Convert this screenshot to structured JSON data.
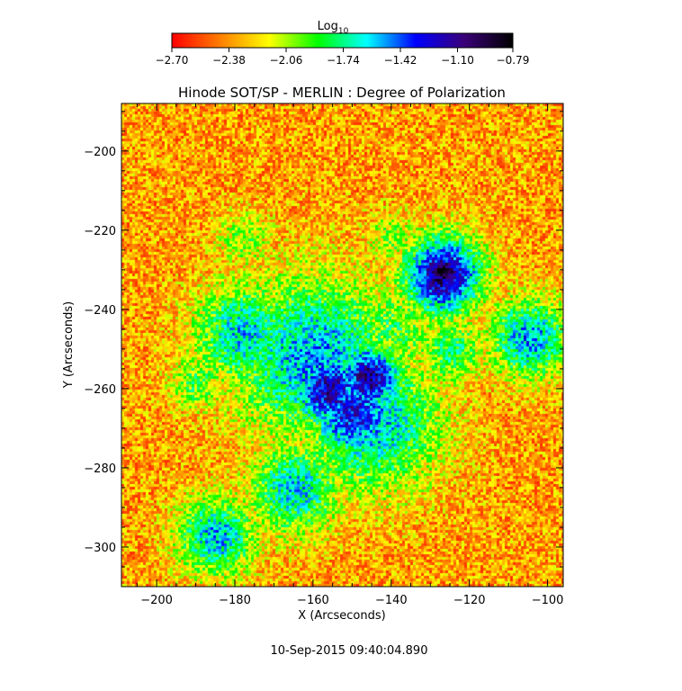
{
  "chart_data": {
    "type": "heatmap",
    "title": "Hinode SOT/SP - MERLIN : Degree of Polarization",
    "xlabel": "X (Arcseconds)",
    "ylabel": "Y (Arcseconds)",
    "xlim": [
      -209,
      -96
    ],
    "ylim": [
      -310,
      -188
    ],
    "x_ticks": [
      -200,
      -180,
      -160,
      -140,
      -120,
      -100
    ],
    "x_tick_labels": [
      "−200",
      "−180",
      "−160",
      "−140",
      "−120",
      "−100"
    ],
    "y_ticks": [
      -200,
      -220,
      -240,
      -260,
      -280,
      -300
    ],
    "y_tick_labels": [
      "−200",
      "−220",
      "−240",
      "−260",
      "−280",
      "−300"
    ],
    "colorbar": {
      "label_base": "Log",
      "label_sub": "10",
      "range": [
        -2.7,
        -0.79
      ],
      "ticks": [
        -2.7,
        -2.38,
        -2.06,
        -1.74,
        -1.42,
        -1.1,
        -0.79
      ],
      "tick_labels": [
        "−2.70",
        "−2.38",
        "−2.06",
        "−1.74",
        "−1.42",
        "−1.10",
        "−0.79"
      ],
      "colormap": [
        "#ff0000",
        "#ff7f00",
        "#ffff00",
        "#00ff00",
        "#00ffff",
        "#0000ff",
        "#3a0078",
        "#000000"
      ]
    },
    "features": [
      {
        "name": "dark polarization core",
        "x": -127,
        "y": -230,
        "radius": 3,
        "value": -0.79
      },
      {
        "name": "dark-blue core ring",
        "x": -127,
        "y": -231,
        "radius": 7,
        "value": -1.05
      },
      {
        "name": "central polarization patch",
        "x": -146,
        "y": -257,
        "radius": 6,
        "value": -1.1
      },
      {
        "name": "central polarization patch",
        "x": -156,
        "y": -260,
        "radius": 7,
        "value": -1.15
      },
      {
        "name": "central polarization patch",
        "x": -150,
        "y": -266,
        "radius": 8,
        "value": -1.25
      },
      {
        "name": "polarization network",
        "x": -160,
        "y": -252,
        "radius": 14,
        "value": -1.5
      },
      {
        "name": "polarization network",
        "x": -145,
        "y": -268,
        "radius": 12,
        "value": -1.55
      },
      {
        "name": "polarization network",
        "x": -178,
        "y": -246,
        "radius": 9,
        "value": -1.6
      },
      {
        "name": "polarization network",
        "x": -165,
        "y": -285,
        "radius": 8,
        "value": -1.6
      },
      {
        "name": "polarization network",
        "x": -185,
        "y": -297,
        "radius": 7,
        "value": -1.55
      },
      {
        "name": "polarization network",
        "x": -105,
        "y": -247,
        "radius": 7,
        "value": -1.5
      },
      {
        "name": "polarization network",
        "x": -125,
        "y": -250,
        "radius": 6,
        "value": -1.8
      },
      {
        "name": "polarization network",
        "x": -140,
        "y": -245,
        "radius": 9,
        "value": -1.9
      },
      {
        "name": "polarization network",
        "x": -190,
        "y": -258,
        "radius": 5,
        "value": -1.9
      },
      {
        "name": "polarization network",
        "x": -178,
        "y": -222,
        "radius": 5,
        "value": -2.0
      },
      {
        "name": "polarization network",
        "x": -140,
        "y": -222,
        "radius": 5,
        "value": -2.0
      }
    ],
    "timestamp": "10-Sep-2015 09:40:04.890"
  }
}
